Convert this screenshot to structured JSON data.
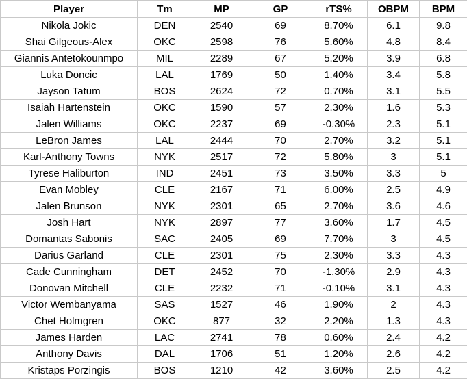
{
  "table": {
    "headers": [
      "Player",
      "Tm",
      "MP",
      "GP",
      "rTS%",
      "OBPM",
      "BPM"
    ],
    "rows": [
      [
        "Nikola Jokic",
        "DEN",
        "2540",
        "69",
        "8.70%",
        "6.1",
        "9.8"
      ],
      [
        "Shai Gilgeous-Alex",
        "OKC",
        "2598",
        "76",
        "5.60%",
        "4.8",
        "8.4"
      ],
      [
        "Giannis Antetokounmpo",
        "MIL",
        "2289",
        "67",
        "5.20%",
        "3.9",
        "6.8"
      ],
      [
        "Luka Doncic",
        "LAL",
        "1769",
        "50",
        "1.40%",
        "3.4",
        "5.8"
      ],
      [
        "Jayson Tatum",
        "BOS",
        "2624",
        "72",
        "0.70%",
        "3.1",
        "5.5"
      ],
      [
        "Isaiah Hartenstein",
        "OKC",
        "1590",
        "57",
        "2.30%",
        "1.6",
        "5.3"
      ],
      [
        "Jalen Williams",
        "OKC",
        "2237",
        "69",
        "-0.30%",
        "2.3",
        "5.1"
      ],
      [
        "LeBron James",
        "LAL",
        "2444",
        "70",
        "2.70%",
        "3.2",
        "5.1"
      ],
      [
        "Karl-Anthony Towns",
        "NYK",
        "2517",
        "72",
        "5.80%",
        "3",
        "5.1"
      ],
      [
        "Tyrese Haliburton",
        "IND",
        "2451",
        "73",
        "3.50%",
        "3.3",
        "5"
      ],
      [
        "Evan Mobley",
        "CLE",
        "2167",
        "71",
        "6.00%",
        "2.5",
        "4.9"
      ],
      [
        "Jalen Brunson",
        "NYK",
        "2301",
        "65",
        "2.70%",
        "3.6",
        "4.6"
      ],
      [
        "Josh Hart",
        "NYK",
        "2897",
        "77",
        "3.60%",
        "1.7",
        "4.5"
      ],
      [
        "Domantas Sabonis",
        "SAC",
        "2405",
        "69",
        "7.70%",
        "3",
        "4.5"
      ],
      [
        "Darius Garland",
        "CLE",
        "2301",
        "75",
        "2.30%",
        "3.3",
        "4.3"
      ],
      [
        "Cade Cunningham",
        "DET",
        "2452",
        "70",
        "-1.30%",
        "2.9",
        "4.3"
      ],
      [
        "Donovan Mitchell",
        "CLE",
        "2232",
        "71",
        "-0.10%",
        "3.1",
        "4.3"
      ],
      [
        "Victor Wembanyama",
        "SAS",
        "1527",
        "46",
        "1.90%",
        "2",
        "4.3"
      ],
      [
        "Chet Holmgren",
        "OKC",
        "877",
        "32",
        "2.20%",
        "1.3",
        "4.3"
      ],
      [
        "James Harden",
        "LAC",
        "2741",
        "78",
        "0.60%",
        "2.4",
        "4.2"
      ],
      [
        "Anthony Davis",
        "DAL",
        "1706",
        "51",
        "1.20%",
        "2.6",
        "4.2"
      ],
      [
        "Kristaps Porzingis",
        "BOS",
        "1210",
        "42",
        "3.60%",
        "2.5",
        "4.2"
      ]
    ]
  }
}
